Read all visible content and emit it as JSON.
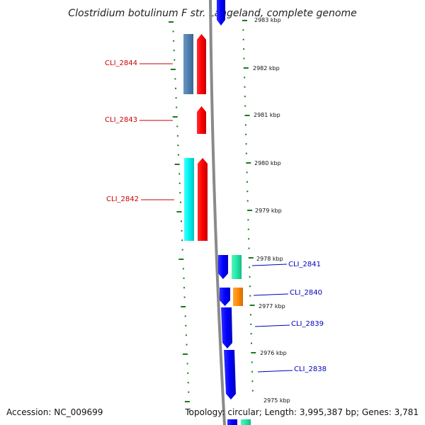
{
  "title": "Clostridium botulinum F str. Langeland, complete genome",
  "accession": "Accession: NC_009699",
  "summary": "Topology: circular; Length: 3,995,387 bp; Genes: 3,781",
  "colors": {
    "backbone": "#8a8a8a",
    "tick": "#1a7a1a",
    "cds_forward": "#ff0000",
    "cds_reverse": "#0000ff",
    "cog_steelblue": "#4f7fae",
    "cog_cyan": "#00f0f0",
    "cog_aqua": "#22e8a8",
    "cog_orange": "#ff8a00",
    "label_forward": "#cc0000",
    "label_reverse": "#0000bb"
  },
  "kbp_markers": [
    "2983 kbp",
    "2982 kbp",
    "2981 kbp",
    "2980 kbp",
    "2979 kbp",
    "2978 kbp",
    "2977 kbp",
    "2976 kbp",
    "2975 kbp"
  ],
  "genes": [
    {
      "id": "CLI_2844",
      "strand": "forward",
      "cog_color": "#4f7fae"
    },
    {
      "id": "CLI_2843",
      "strand": "forward",
      "cog_color": null
    },
    {
      "id": "CLI_2842",
      "strand": "forward",
      "cog_color": "#00f0f0"
    },
    {
      "id": "CLI_2841",
      "strand": "reverse",
      "cog_color": "#22e8a8"
    },
    {
      "id": "CLI_2840",
      "strand": "reverse",
      "cog_color": "#ff8a00"
    },
    {
      "id": "CLI_2839",
      "strand": "reverse",
      "cog_color": null
    },
    {
      "id": "CLI_2838",
      "strand": "reverse",
      "cog_color": null
    }
  ]
}
